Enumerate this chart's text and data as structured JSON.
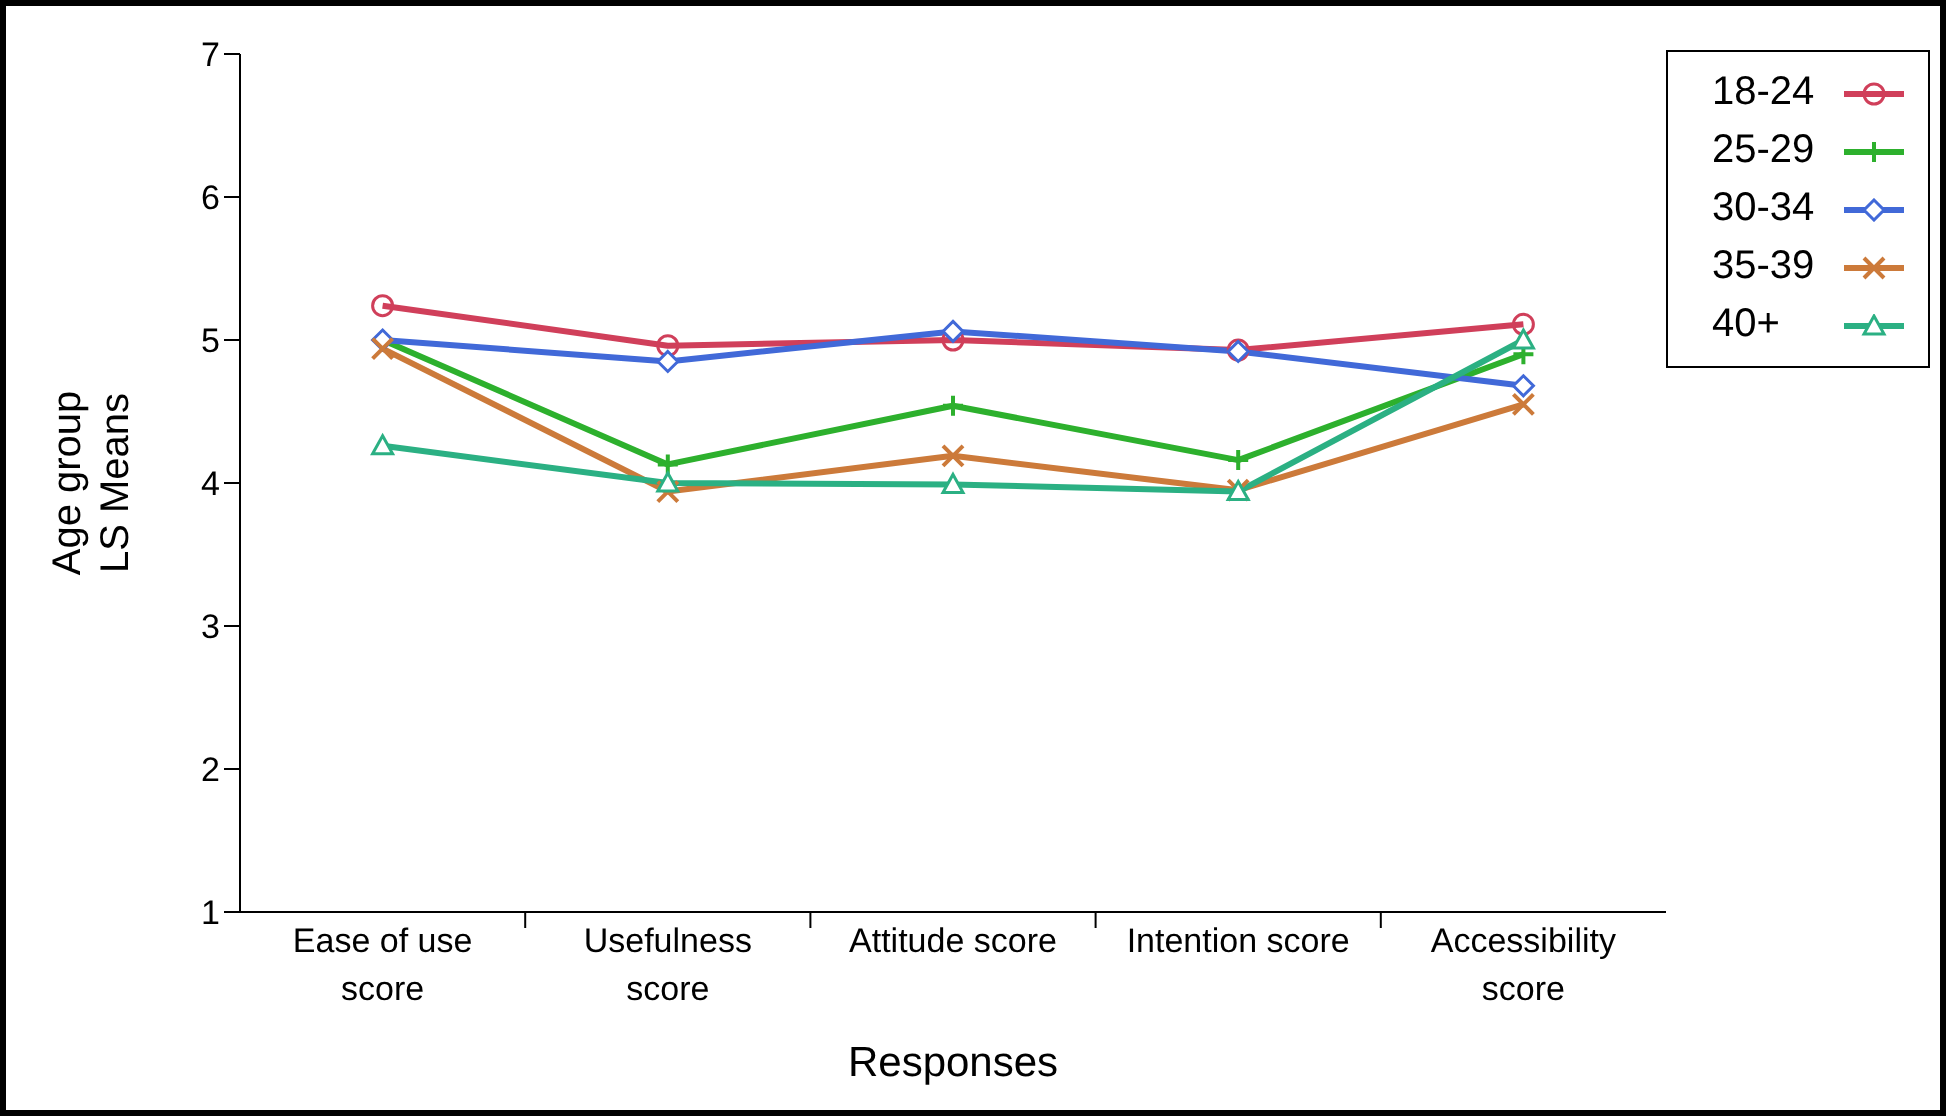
{
  "chart_data": {
    "type": "line",
    "xlabel": "Responses",
    "ylabel": "Age group\nLS Means",
    "categories": [
      "Ease of use score",
      "Usefulness score",
      "Attitude score",
      "Intention score",
      "Accessibility score"
    ],
    "ylim": [
      1,
      7
    ],
    "yticks": [
      1,
      2,
      3,
      4,
      5,
      6,
      7
    ],
    "grid": false,
    "legend": "top right",
    "line_style": "solid",
    "series": [
      {
        "name": "18-24",
        "color": "#d03f5a",
        "marker": "circle",
        "values": [
          5.24,
          4.96,
          5.0,
          4.93,
          5.11
        ]
      },
      {
        "name": "25-29",
        "color": "#2db02d",
        "marker": "plus",
        "values": [
          5.0,
          4.13,
          4.54,
          4.16,
          4.9
        ]
      },
      {
        "name": "30-34",
        "color": "#4169d8",
        "marker": "diamond",
        "values": [
          5.0,
          4.85,
          5.06,
          4.92,
          4.68
        ]
      },
      {
        "name": "35-39",
        "color": "#cc7a3a",
        "marker": "cross",
        "values": [
          4.94,
          3.94,
          4.19,
          3.95,
          4.55
        ]
      },
      {
        "name": "40+",
        "color": "#2bb083",
        "marker": "triangle",
        "values": [
          4.26,
          4.0,
          3.99,
          3.94,
          5.0
        ]
      }
    ]
  }
}
